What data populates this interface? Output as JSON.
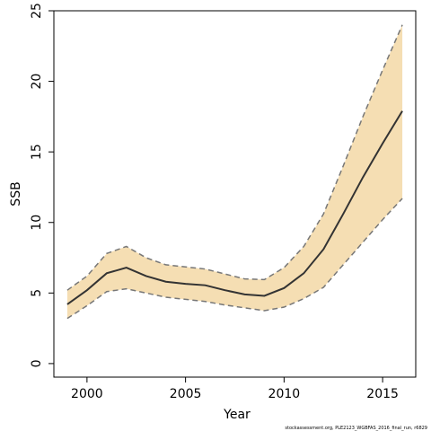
{
  "chart_data": {
    "type": "line",
    "xlabel": "Year",
    "ylabel": "SSB",
    "footnote": "stockassessment.org, PLE2123_WGBFAS_2016_final_run, r6829",
    "x": [
      1999,
      2000,
      2001,
      2002,
      2003,
      2004,
      2005,
      2006,
      2007,
      2008,
      2009,
      2010,
      2011,
      2012,
      2013,
      2014,
      2015,
      2016
    ],
    "values": [
      4.2,
      5.2,
      6.4,
      6.8,
      6.2,
      5.8,
      5.65,
      5.55,
      5.2,
      4.9,
      4.8,
      5.35,
      6.4,
      8.1,
      10.6,
      13.2,
      15.6,
      17.9
    ],
    "lower": [
      3.2,
      4.1,
      5.1,
      5.3,
      5.0,
      4.7,
      4.55,
      4.4,
      4.15,
      3.95,
      3.75,
      4.0,
      4.6,
      5.4,
      7.0,
      8.6,
      10.2,
      11.7
    ],
    "upper": [
      5.2,
      6.2,
      7.8,
      8.3,
      7.5,
      7.0,
      6.85,
      6.7,
      6.35,
      6.0,
      5.95,
      6.8,
      8.3,
      10.6,
      14.0,
      17.5,
      20.8,
      24.0
    ],
    "color": "#333333",
    "band_color": "#f5deb3",
    "bound_color": "#777777",
    "xlim": [
      1998.32,
      2016.68
    ],
    "xticks": [
      2000,
      2005,
      2010,
      2015
    ],
    "ylim": [
      -0.96,
      25
    ],
    "yticks": [
      0,
      5,
      10,
      15,
      20,
      25
    ]
  }
}
